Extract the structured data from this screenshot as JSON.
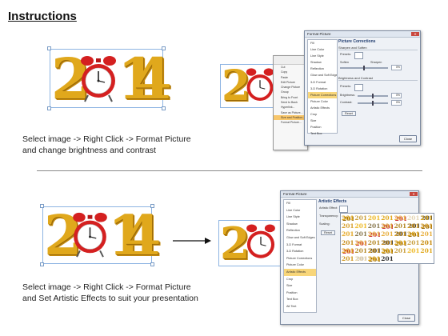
{
  "page": {
    "title": "Instructions",
    "instruction1": "Select image -> Right Click -> Format Picture and change brightness and contrast",
    "instruction2": "Select image -> Right Click -> Format Picture and Set Artistic Effects to suit your presentation"
  },
  "image_text": {
    "d2": "2",
    "d1": "1",
    "d4": "4"
  },
  "colors": {
    "gold": "#e0a81c",
    "clock_red": "#d42020",
    "selection": "#f8d67a"
  },
  "icons": [
    "alarm-clock-icon",
    "arrow-right-icon",
    "close-icon"
  ],
  "context_menu": {
    "items": [
      "Cut",
      "Copy",
      "Paste",
      "Edit Picture",
      "Change Picture",
      "Group",
      "Bring to Front",
      "Send to Back",
      "Hyperlink...",
      "Save as Picture...",
      "Size and Position...",
      "Format Picture..."
    ],
    "selected_index": 10
  },
  "dialog_common": {
    "window_title": "Format Picture",
    "nav_items": [
      "Fill",
      "Line Color",
      "Line Style",
      "Shadow",
      "Reflection",
      "Glow and Soft Edges",
      "3-D Format",
      "3-D Rotation",
      "Picture Corrections",
      "Picture Color",
      "Artistic Effects",
      "Crop",
      "Size",
      "Position",
      "Text Box",
      "Alt Text"
    ],
    "close_label": "Close"
  },
  "dialog1": {
    "selected_nav": "Picture Corrections",
    "panel_title": "Picture Corrections",
    "section1": "Sharpen and Soften",
    "presets_label": "Presets:",
    "soften_label": "Soften",
    "sharpen_label": "Sharpen",
    "sharpen_value": "0%",
    "section2": "Brightness and Contrast",
    "presets2_label": "Presets:",
    "brightness_label": "Brightness:",
    "brightness_value": "0%",
    "contrast_label": "Contrast:",
    "contrast_value": "0%",
    "reset_label": "Reset"
  },
  "dialog2": {
    "selected_nav": "Artistic Effects",
    "panel_title": "Artistic Effects",
    "effect_label": "Artistic Effect:",
    "transparency_label": "Transparency:",
    "scaling_label": "Scaling:",
    "reset_label": "Reset",
    "gallery_text": "2014"
  }
}
